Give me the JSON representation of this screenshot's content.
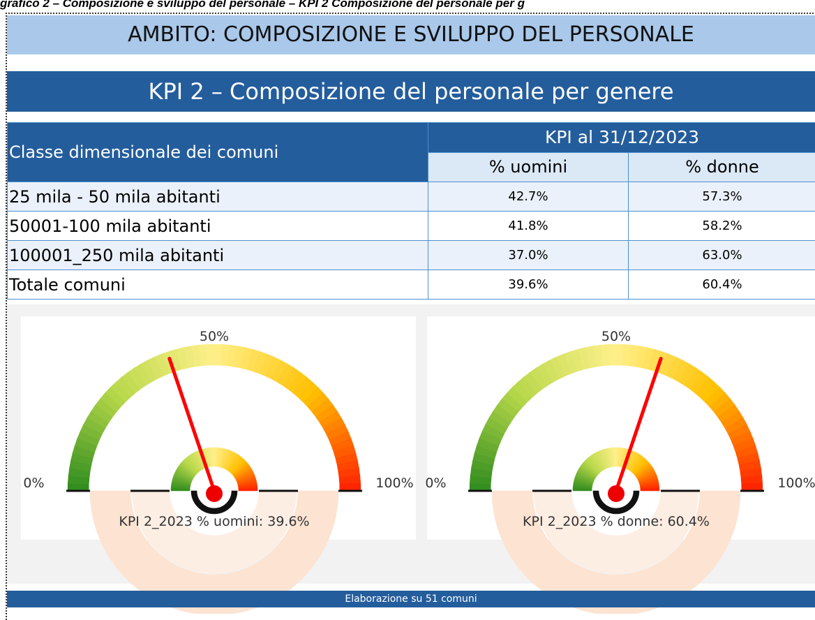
{
  "caption_top": "grafico 2 – Composizione e sviluppo del personale – KPI 2 Composizione del personale per g",
  "header": {
    "ambito": "AMBITO: COMPOSIZIONE E SVILUPPO DEL PERSONALE",
    "title": "KPI 2 – Composizione del personale per genere"
  },
  "table": {
    "col0": "Classe dimensionale dei comuni",
    "group": "KPI al 31/12/2023",
    "cols": [
      "% uomini",
      "% donne"
    ],
    "rows": [
      [
        "25 mila - 50 mila abitanti",
        "42.7%",
        "57.3%"
      ],
      [
        "50001-100 mila abitanti",
        "41.8%",
        "58.2%"
      ],
      [
        "100001_250 mila abitanti",
        "37.0%",
        "63.0%"
      ],
      [
        "Totale comuni",
        "39.6%",
        "60.4%"
      ]
    ]
  },
  "gauges": [
    {
      "caption": "KPI 2_2023 % uomini: 39.6%",
      "value": 39.6,
      "ticks": [
        {
          "value": 0,
          "label": "0%"
        },
        {
          "value": 50,
          "label": "50%"
        },
        {
          "value": 100,
          "label": "100%"
        }
      ]
    },
    {
      "caption": "KPI 2_2023 % donne: 60.4%",
      "value": 60.4,
      "ticks": [
        {
          "value": 0,
          "label": "0%"
        },
        {
          "value": 50,
          "label": "50%"
        },
        {
          "value": 100,
          "label": "100%"
        }
      ]
    }
  ],
  "footer": "Elaborazione su 51 comuni"
}
